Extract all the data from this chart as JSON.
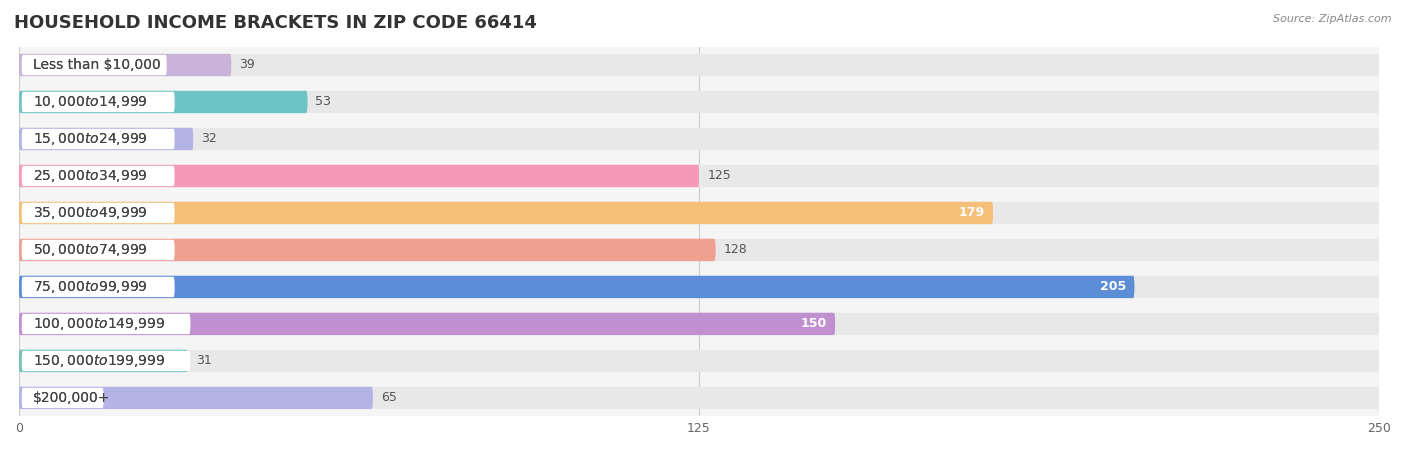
{
  "title": "HOUSEHOLD INCOME BRACKETS IN ZIP CODE 66414",
  "source": "Source: ZipAtlas.com",
  "categories": [
    "Less than $10,000",
    "$10,000 to $14,999",
    "$15,000 to $24,999",
    "$25,000 to $34,999",
    "$35,000 to $49,999",
    "$50,000 to $74,999",
    "$75,000 to $99,999",
    "$100,000 to $149,999",
    "$150,000 to $199,999",
    "$200,000+"
  ],
  "values": [
    39,
    53,
    32,
    125,
    179,
    128,
    205,
    150,
    31,
    65
  ],
  "bar_colors": [
    "#c9b3d9",
    "#6ec4c4",
    "#b3b3e6",
    "#f499b7",
    "#f5bf78",
    "#f0a090",
    "#5b8ed6",
    "#c090d0",
    "#6ec4b8",
    "#b3b3e6"
  ],
  "value_inside": [
    false,
    false,
    false,
    false,
    true,
    false,
    true,
    true,
    false,
    false
  ],
  "xlim": [
    0,
    250
  ],
  "xticks": [
    0,
    125,
    250
  ],
  "background_color": "#ffffff",
  "row_background_color": "#f0f0f0",
  "title_fontsize": 13,
  "label_fontsize": 10,
  "value_fontsize": 9,
  "bar_height": 0.6
}
